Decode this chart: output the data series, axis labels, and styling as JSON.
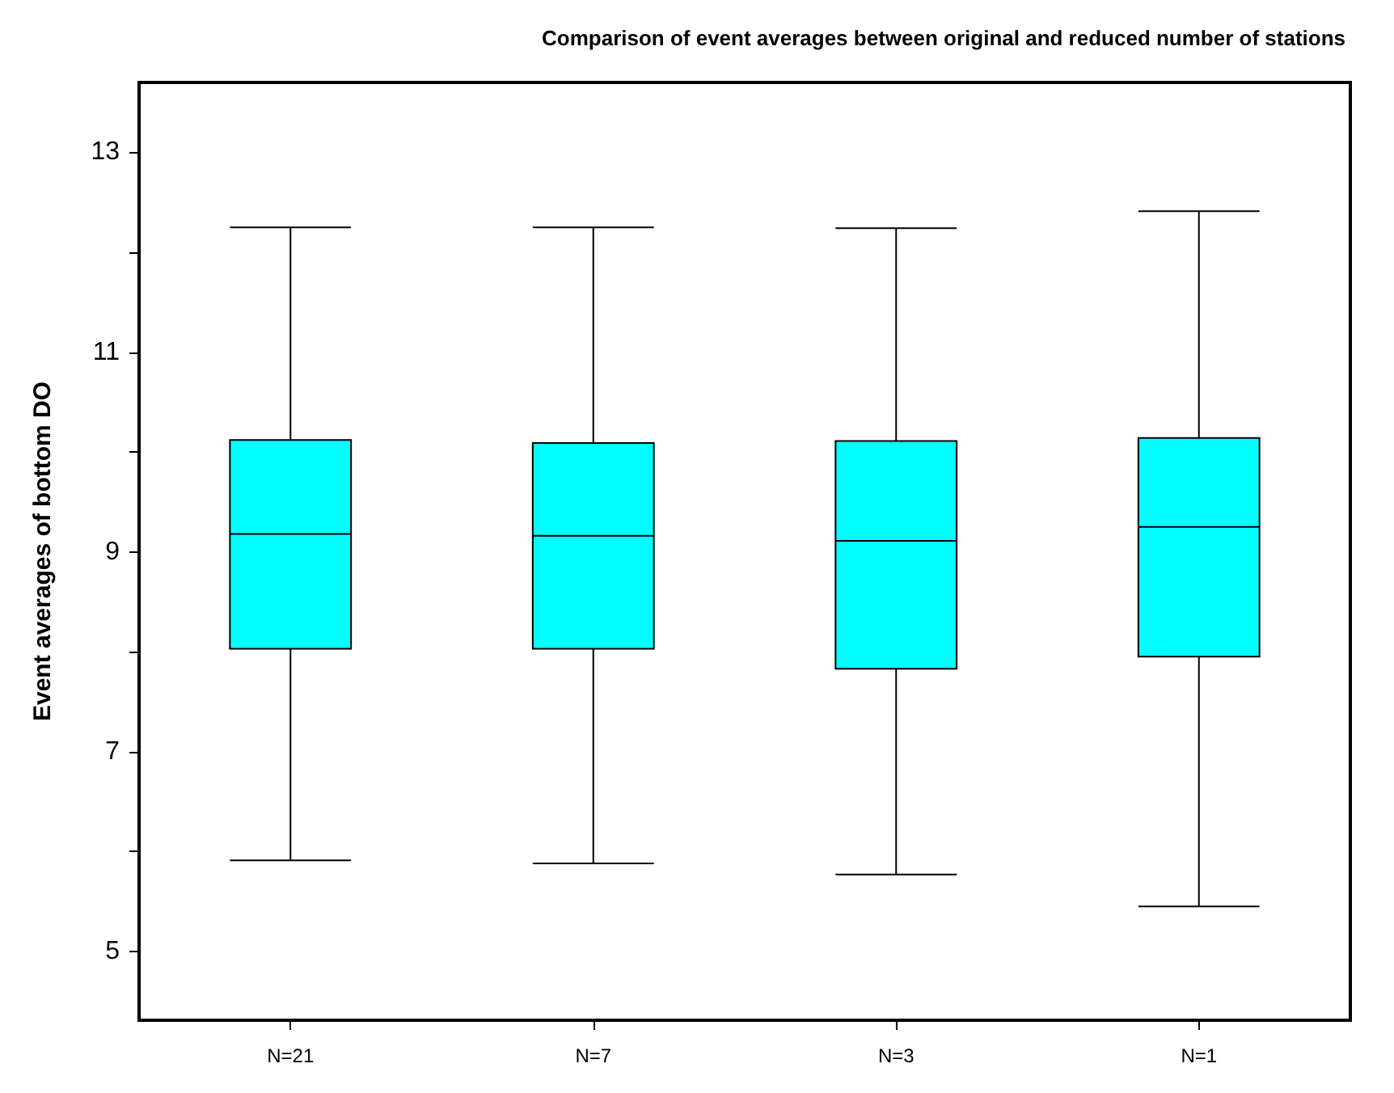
{
  "chart_data": {
    "type": "box",
    "title": "Comparison of event averages between original and reduced number of stations",
    "ylabel": "Event averages of bottom DO",
    "categories": [
      "N=21",
      "N=7",
      "N=3",
      "N=1"
    ],
    "series": [
      {
        "color": "#00ffff",
        "boxes": [
          {
            "low": 5.91,
            "q1": 8.03,
            "median": 9.18,
            "q3": 10.12,
            "high": 12.25
          },
          {
            "low": 5.88,
            "q1": 8.03,
            "median": 9.16,
            "q3": 10.09,
            "high": 12.25
          },
          {
            "low": 5.77,
            "q1": 7.83,
            "median": 9.11,
            "q3": 10.11,
            "high": 12.24
          },
          {
            "low": 5.45,
            "q1": 7.95,
            "median": 9.25,
            "q3": 10.14,
            "high": 12.41
          }
        ]
      }
    ],
    "ylim": [
      4.31,
      13.7
    ],
    "yticks": [
      5,
      {
        "value": 6,
        "label": null
      },
      7,
      {
        "value": 8,
        "label": null
      },
      9,
      {
        "value": 10,
        "label": null
      },
      11,
      {
        "value": 12,
        "label": null
      },
      13
    ],
    "grid": false
  }
}
